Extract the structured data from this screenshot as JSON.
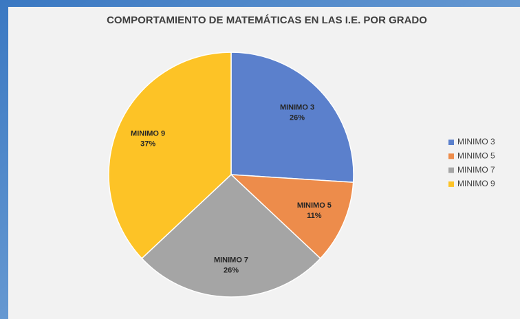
{
  "chart_data": {
    "type": "pie",
    "title": "COMPORTAMIENTO DE MATEMÁTICAS EN LAS I.E. POR GRADO",
    "categories": [
      "MINIMO 3",
      "MINIMO 5",
      "MINIMO 7",
      "MINIMO 9"
    ],
    "values": [
      26,
      11,
      26,
      37
    ],
    "value_labels": [
      "26%",
      "11%",
      "26%",
      "37%"
    ],
    "colors": [
      "#5b80cc",
      "#ed8c4b",
      "#a5a5a5",
      "#fdc326"
    ],
    "legend": "right"
  }
}
